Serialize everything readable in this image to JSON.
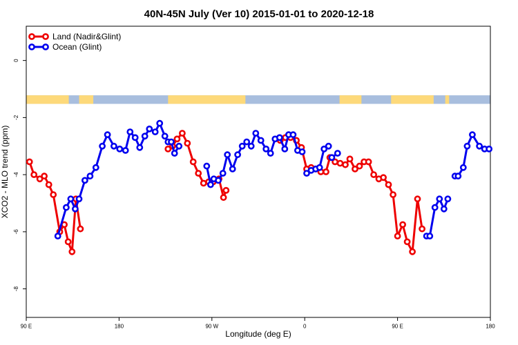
{
  "chart_data": {
    "type": "line",
    "title": "40N-45N July (Ver 10)   2015-01-01 to 2020-12-18",
    "xlabel": "Longitude (deg E)",
    "ylabel": "XCO2 - MLO trend (ppm)",
    "xlim": [
      90,
      450
    ],
    "ylim": [
      -9,
      1.2
    ],
    "x_ticks": [
      90,
      162,
      234,
      306,
      378,
      450
    ],
    "x_tick_labels": [
      "90 E",
      "180",
      "90 W",
      "0",
      "90 E",
      "180"
    ],
    "y_ticks": [
      0,
      -2,
      -4,
      -6,
      -8
    ],
    "y_tick_labels": [
      "0",
      "-2",
      "-4",
      "-6",
      "-8"
    ],
    "legend_position": "top-left",
    "land_ocean_strip": {
      "y_range": [
        -1.52,
        -1.22
      ],
      "land_color": "#fdd97a",
      "ocean_color": "#a8bede",
      "land_intervals": [
        [
          90,
          123
        ],
        [
          131,
          142
        ],
        [
          200,
          260
        ],
        [
          333,
          350
        ],
        [
          373,
          406
        ],
        [
          415,
          418
        ]
      ]
    },
    "series": [
      {
        "name": "Land (Nadir&Glint)",
        "color": "#ee0000",
        "segments": [
          {
            "x": [
              92.5,
              96.0,
              100.5,
              104.0,
              107.5,
              111.0,
              116.0,
              119.5,
              122.5,
              125.5,
              128.5,
              132.0,
              135.0
            ],
            "y": [
              -3.55,
              -4.0,
              -4.15,
              -4.05,
              -4.35,
              -4.7,
              -6.0,
              -5.75,
              -6.35,
              -6.7,
              -4.85,
              -5.9,
              null
            ]
          },
          {
            "x": [
              200.0,
              203.5,
              207.0,
              211.0,
              215.0,
              219.5,
              223.5,
              227.5,
              231.5,
              235.0,
              239.5,
              243.0,
              245.0,
              248.0
            ],
            "y": [
              -3.1,
              -3.0,
              -2.75,
              -2.55,
              -2.9,
              -3.55,
              -3.95,
              -4.3,
              -4.25,
              -4.25,
              -4.15,
              -4.8,
              -4.55,
              null
            ]
          }
        ]
      },
      {
        "name": "Ocean (Glint)",
        "color": "#0000ee",
        "segments": [
          {
            "x": [
              114.5,
              121.0,
              124.5,
              128.0,
              131.0,
              135.5,
              139.5,
              144.0,
              149.0,
              153.0,
              158.0,
              162.5,
              167.0,
              170.5,
              174.5,
              178.0,
              182.0,
              185.5,
              190.0,
              193.5,
              197.5,
              200.0
            ],
            "y": [
              -6.15,
              -5.15,
              -4.85,
              -5.2,
              -4.85,
              -4.2,
              -4.05,
              -3.75,
              -3.0,
              -2.6,
              -3.0,
              -3.1,
              -3.15,
              -2.5,
              -2.7,
              -3.05,
              -2.65,
              -2.4,
              -2.5,
              -2.2,
              -2.65,
              -2.85
            ]
          },
          {
            "x": [
              202.5,
              205.0,
              208.5
            ],
            "y": [
              -2.85,
              -3.25,
              -3.0
            ]
          },
          {
            "x": [
              230.0,
              233.0,
              235.5,
              239.0,
              242.5,
              246.0,
              250.0,
              254.0,
              257.5,
              261.0,
              264.5,
              268.0,
              272.0,
              276.0,
              279.5,
              283.0,
              286.5,
              290.5,
              293.5,
              297.0,
              300.5,
              304.0
            ],
            "y": [
              -3.7,
              -4.35,
              -4.15,
              -4.2,
              -3.95,
              -3.3,
              -3.8,
              -3.3,
              -3.0,
              -2.85,
              -3.0,
              -2.55,
              -2.8,
              -3.1,
              -3.25,
              -2.75,
              -2.7,
              -3.1,
              -2.6,
              -2.6,
              -3.15,
              -3.2
            ]
          },
          {
            "x": [
              307.5,
              311.0,
              314.5,
              317.5,
              321.0,
              324.5
            ],
            "y": [
              -3.95,
              -3.85,
              -3.8,
              -3.75,
              -3.1,
              -3.0
            ]
          },
          {
            "x": [
              327.0,
              331.5
            ],
            "y": [
              -3.4,
              -3.25
            ]
          },
          {
            "x": [
              400.5,
              403.0,
              407.0,
              410.5,
              414.0,
              417.0
            ],
            "y": [
              -6.15,
              -6.15,
              -5.15,
              -4.85,
              -5.2,
              -4.85
            ]
          },
          {
            "x": [
              422.5,
              425.0,
              429.0,
              432.0,
              436.0,
              441.5,
              445.5,
              449.0
            ],
            "y": [
              -4.05,
              -4.05,
              -3.75,
              -3.0,
              -2.6,
              -3.0,
              -3.1,
              -3.1
            ]
          }
        ]
      }
    ],
    "extra_land_segments": [
      {
        "x": [
          287.0,
          291.0,
          295.0,
          299.5,
          303.5,
          307.5,
          311.0,
          314.5,
          318.5,
          322.5,
          325.5,
          329.5,
          333.5,
          337.5,
          341.0,
          345.0,
          348.5,
          352.0,
          355.5,
          359.5,
          363.5,
          367.0,
          371.0,
          374.5,
          378.0,
          382.0,
          385.5,
          389.5,
          393.5,
          397.0,
          400.5,
          404.5,
          407.5,
          411.5,
          415.0,
          417.5
        ],
        "y": [
          -2.8,
          -2.7,
          -2.7,
          -2.8,
          -3.05,
          -3.8,
          -3.75,
          -3.8,
          -3.9,
          -3.9,
          -3.4,
          -3.55,
          -3.6,
          -3.65,
          -3.45,
          -3.8,
          -3.7,
          -3.55,
          -3.55,
          -4.0,
          -4.15,
          -4.1,
          -4.35,
          -4.7,
          -6.15,
          -5.75,
          -6.35,
          -6.7,
          -4.85,
          -5.9,
          null,
          null,
          null,
          null,
          null,
          null
        ]
      }
    ]
  }
}
